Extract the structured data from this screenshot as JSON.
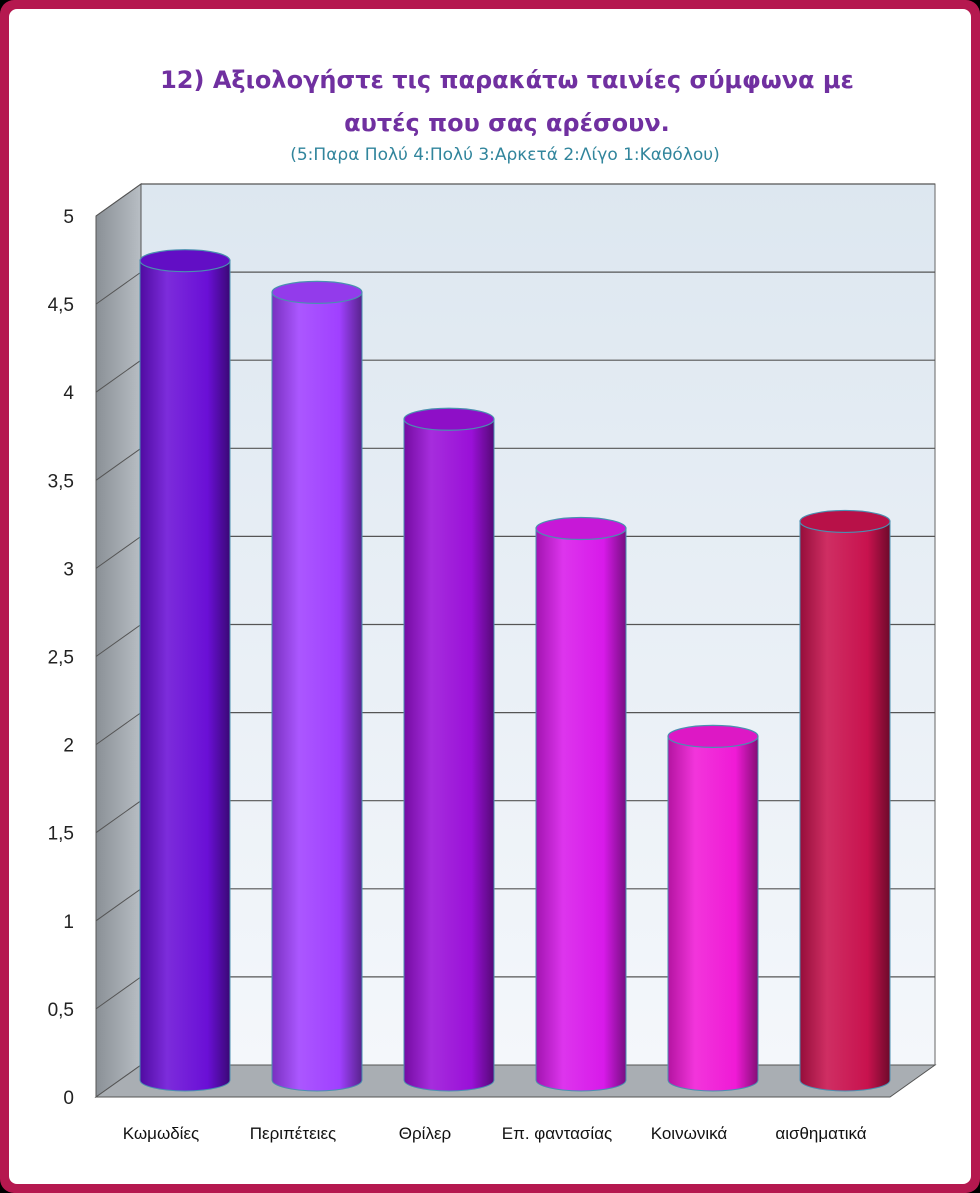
{
  "chart_data": {
    "type": "bar",
    "title_line1": "12) Αξιολογήστε τις παρακάτω ταινίες σύμφωνα με",
    "title_line2": "αυτές που σας αρέσουν.",
    "subtitle": "(5:Παρα Πολύ  4:Πολύ  3:Αρκετά  2:Λίγο  1:Καθόλου)",
    "categories": [
      "Κωμωδίες",
      "Περιπέτειες",
      "Θρίλερ",
      "Επ. φαντασίας",
      "Κοινωνικά",
      "αισθηματικά"
    ],
    "values": [
      4.65,
      4.47,
      3.75,
      3.13,
      1.95,
      3.17
    ],
    "ylim": [
      0,
      5
    ],
    "yticks": [
      "0",
      "0,5",
      "1",
      "1,5",
      "2",
      "2,5",
      "3",
      "3,5",
      "4",
      "4,5",
      "5"
    ],
    "grid": true,
    "bar_colors": [
      "#6a0fd6",
      "#a040ff",
      "#9a10d8",
      "#d81aea",
      "#f01ad6",
      "#c8124e"
    ]
  }
}
